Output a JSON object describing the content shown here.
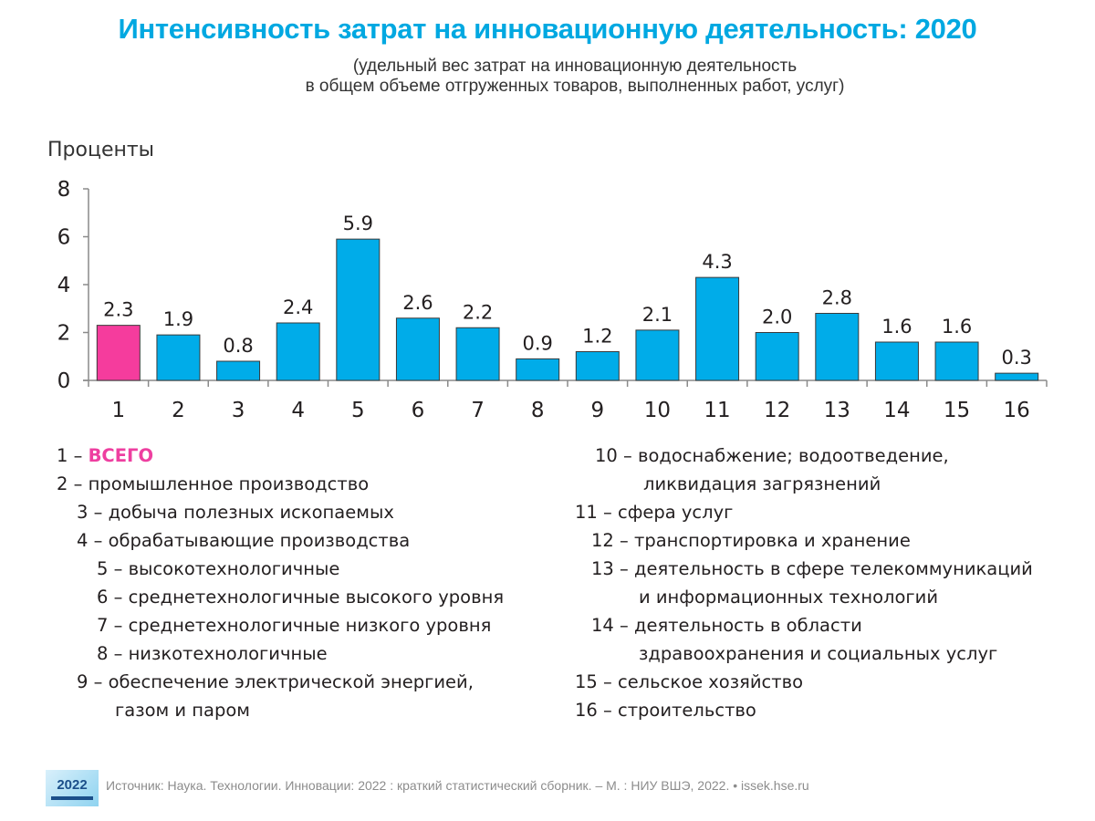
{
  "header": {
    "title": "Интенсивность затрат на инновационную деятельность: 2020",
    "subtitle_line1": "(удельный вес затрат на инновационную деятельность",
    "subtitle_line2": "в общем объеме отгруженных товаров, выполненных работ, услуг)"
  },
  "chart_data": {
    "type": "bar",
    "title": "Интенсивность затрат на инновационную деятельность: 2020",
    "xlabel": "",
    "ylabel": "Проценты",
    "ylim": [
      0,
      8
    ],
    "yticks": [
      0,
      2,
      4,
      6,
      8
    ],
    "grid": false,
    "categories": [
      "1",
      "2",
      "3",
      "4",
      "5",
      "6",
      "7",
      "8",
      "9",
      "10",
      "11",
      "12",
      "13",
      "14",
      "15",
      "16"
    ],
    "values": [
      2.3,
      1.9,
      0.8,
      2.4,
      5.9,
      2.6,
      2.2,
      0.9,
      1.2,
      2.1,
      4.3,
      2.0,
      2.8,
      1.6,
      1.6,
      0.3
    ],
    "value_labels": [
      "2.3",
      "1.9",
      "0.8",
      "2.4",
      "5.9",
      "2.6",
      "2.2",
      "0.9",
      "1.2",
      "2.1",
      "4.3",
      "2.0",
      "2.8",
      "1.6",
      "1.6",
      "0.3"
    ],
    "highlight_index": 0,
    "colors": {
      "default": "#00ace9",
      "highlight": "#f53c9d",
      "outline": "#3a3a3a",
      "axis": "#8a8a8a"
    }
  },
  "legend": {
    "left": [
      {
        "num": "1 –",
        "text": "ВСЕГО",
        "highlight": true
      },
      {
        "num": "2 –",
        "text": "промышленное производство"
      },
      {
        "num": "3 –",
        "text": "добыча полезных ископаемых"
      },
      {
        "num": "4 –",
        "text": "обрабатывающие производства"
      },
      {
        "num": "5 –",
        "text": "высокотехнологичные"
      },
      {
        "num": "6 –",
        "text": "среднетехнологичные высокого уровня"
      },
      {
        "num": "7 –",
        "text": "среднетехнологичные низкого уровня"
      },
      {
        "num": "8 –",
        "text": "низкотехнологичные"
      },
      {
        "num": "9 –",
        "text": "обеспечение электрической энергией,"
      },
      {
        "num": "",
        "text": "газом и паром"
      }
    ],
    "right": [
      {
        "num": "10 –",
        "text": "водоснабжение; водоотведение,"
      },
      {
        "num": "",
        "text": "ликвидация загрязнений"
      },
      {
        "num": "11 –",
        "text": "сфера услуг"
      },
      {
        "num": "12 –",
        "text": "транспортировка и хранение"
      },
      {
        "num": "13 –",
        "text": "деятельность в сфере телекоммуникаций"
      },
      {
        "num": "",
        "text": "и информационных технологий"
      },
      {
        "num": "14 –",
        "text": "деятельность в области"
      },
      {
        "num": "",
        "text": "здравоохранения и социальных услуг"
      },
      {
        "num": "15 –",
        "text": "сельское хозяйство"
      },
      {
        "num": "16 –",
        "text": "строительство"
      }
    ]
  },
  "footer": {
    "cover_year": "2022",
    "source": "Источник: Наука. Технологии. Инновации: 2022 : краткий статистический сборник. – М. : НИУ ВШЭ, 2022. • issek.hse.ru"
  }
}
